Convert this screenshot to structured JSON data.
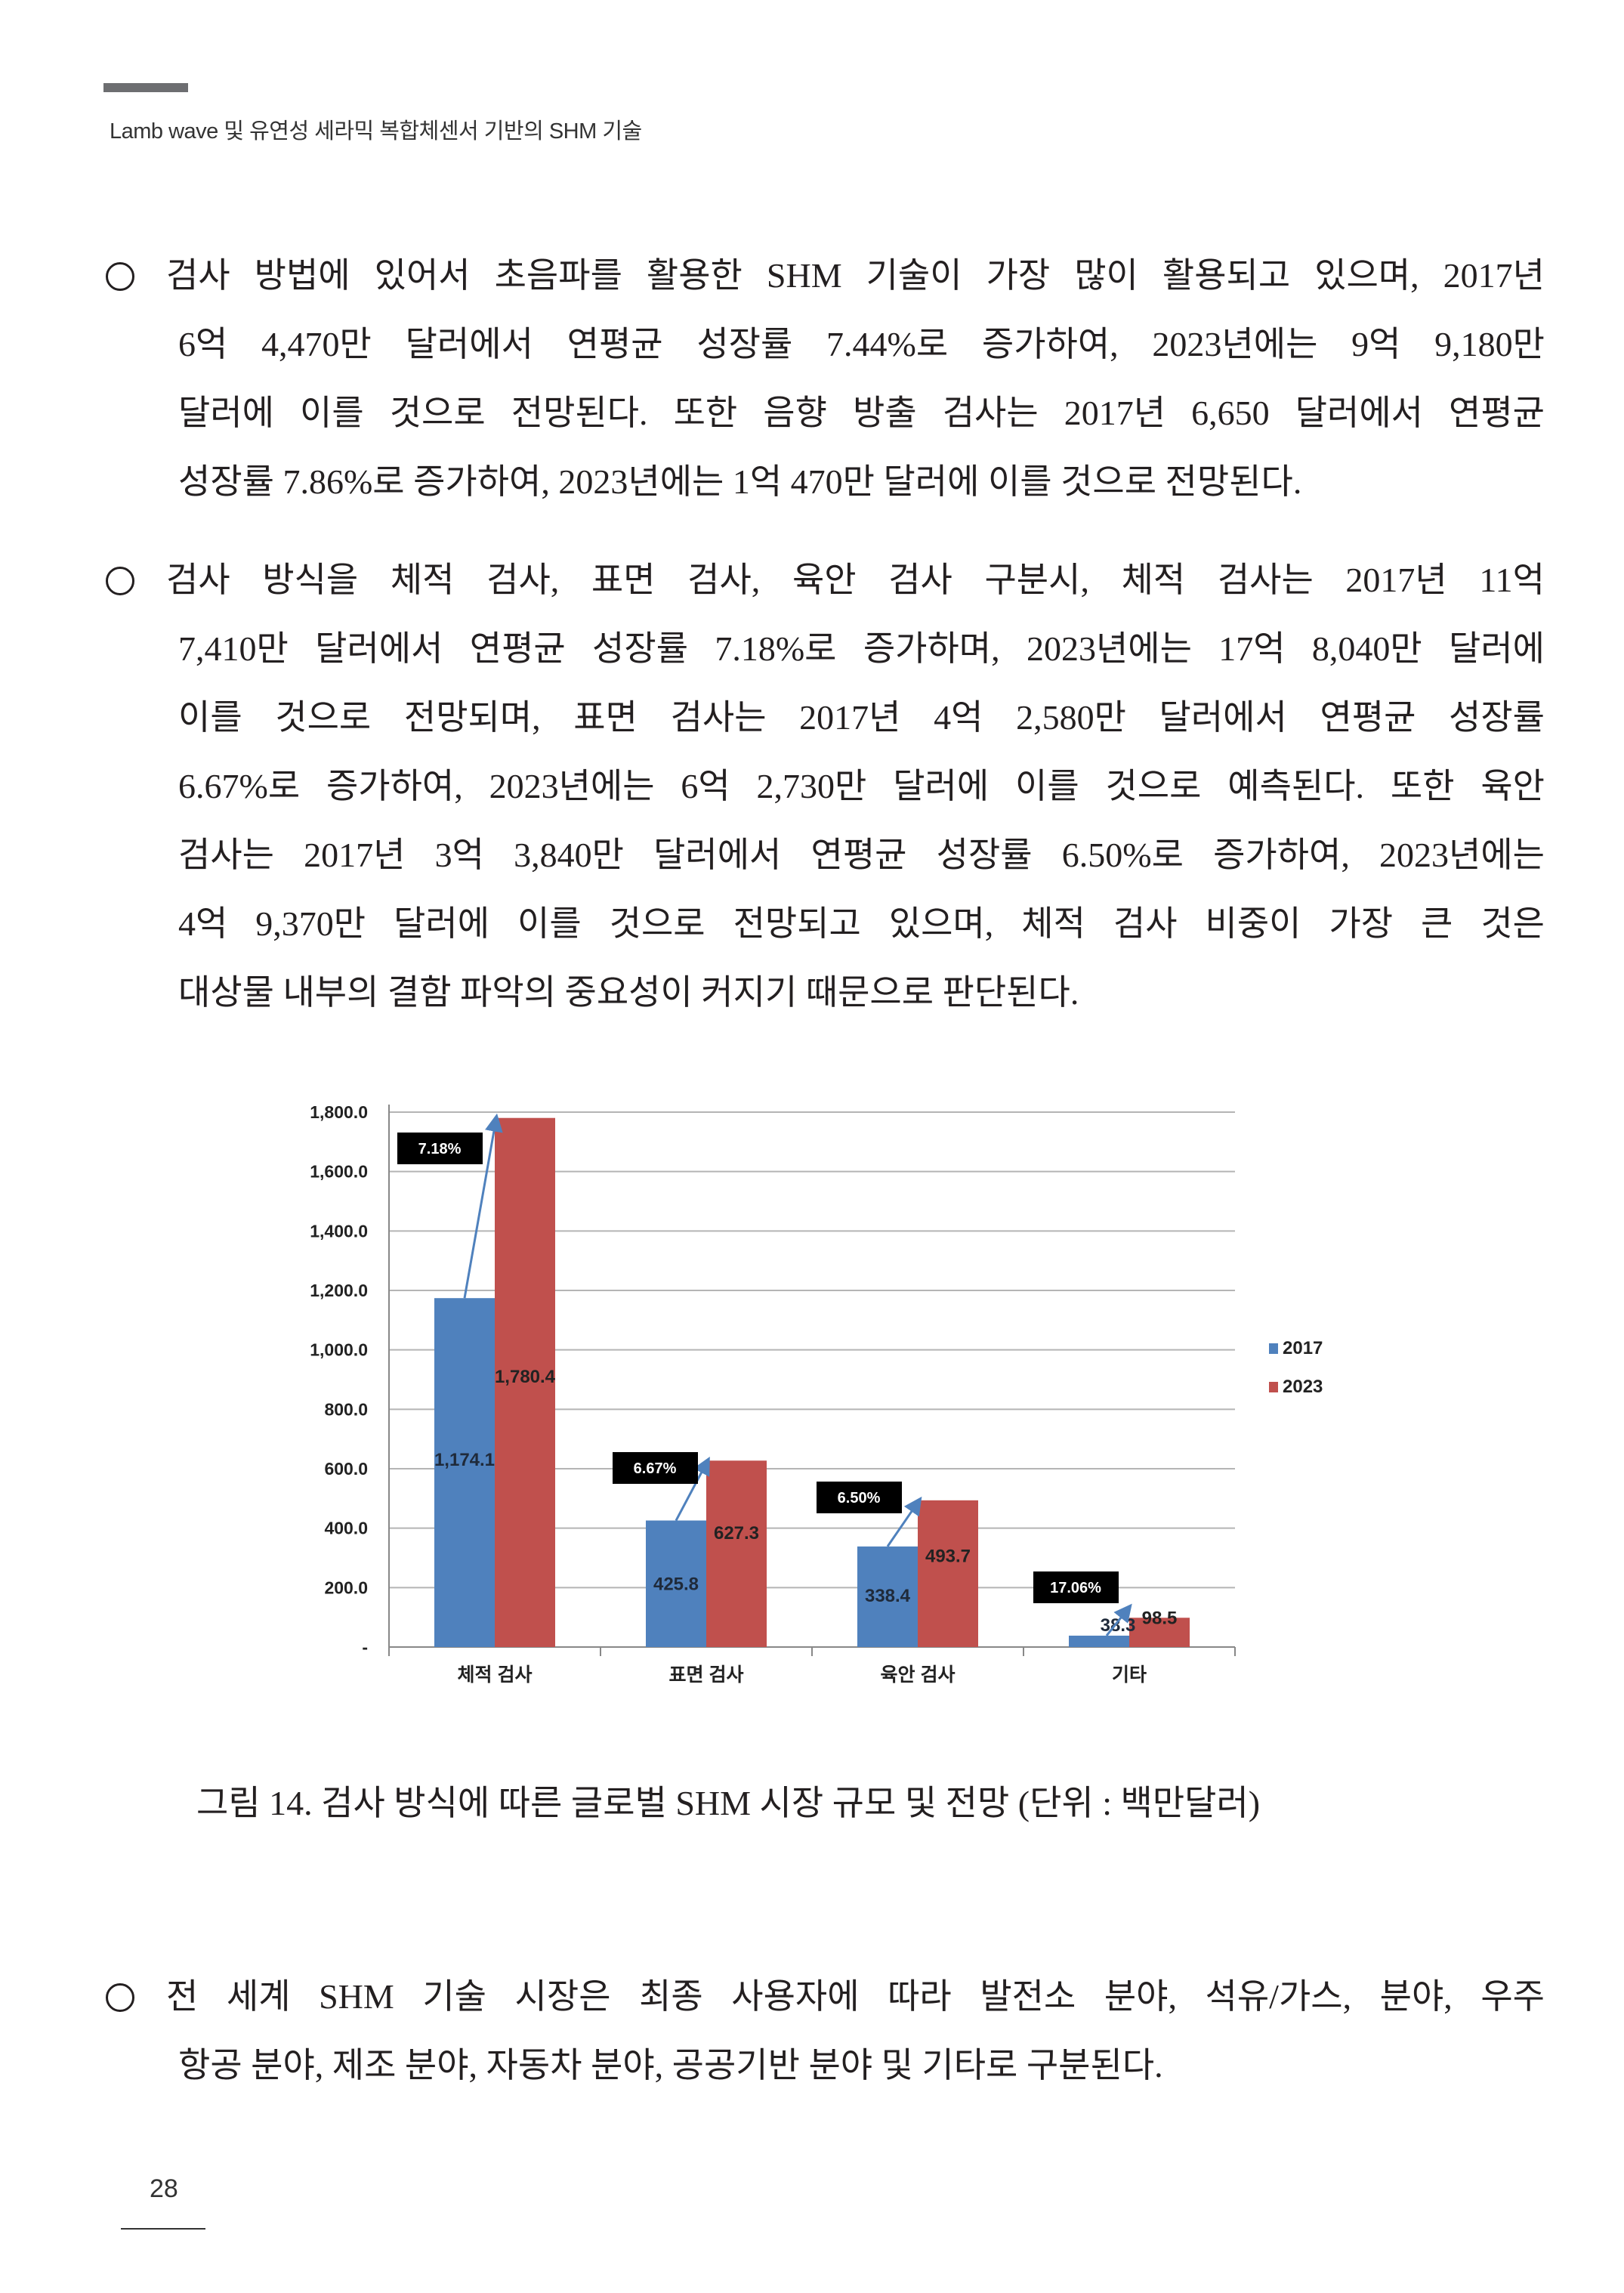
{
  "header": {
    "title": "Lamb wave 및 유연성 세라믹 복합체센서 기반의 SHM 기술"
  },
  "paragraphs": [
    {
      "lines": [
        "검사 방법에 있어서 초음파를 활용한 SHM 기술이 가장 많이 활용되고 있으며, 2017년",
        "6억 4,470만 달러에서 연평균 성장률 7.44%로 증가하여, 2023년에는 9억 9,180만",
        "달러에 이를 것으로 전망된다. 또한 음향 방출 검사는 2017년 6,650 달러에서 연평균",
        "성장률 7.86%로 증가하여, 2023년에는 1억 470만 달러에 이를 것으로 전망된다."
      ]
    },
    {
      "lines": [
        "검사 방식을 체적 검사, 표면 검사, 육안 검사 구분시, 체적 검사는 2017년 11억",
        "7,410만 달러에서 연평균 성장률 7.18%로 증가하며, 2023년에는 17억 8,040만 달러에",
        "이를 것으로 전망되며, 표면 검사는 2017년 4억 2,580만 달러에서 연평균 성장률",
        "6.67%로 증가하여, 2023년에는 6억 2,730만 달러에 이를 것으로 예측된다. 또한 육안",
        "검사는 2017년 3억 3,840만 달러에서 연평균 성장률 6.50%로 증가하여, 2023년에는",
        "4억 9,370만 달러에 이를 것으로 전망되고 있으며, 체적 검사 비중이 가장 큰 것은",
        "대상물 내부의 결함 파악의 중요성이 커지기 때문으로 판단된다."
      ]
    },
    {
      "lines": [
        "전 세계 SHM 기술 시장은 최종 사용자에 따라 발전소 분야, 석유/가스, 분야, 우주",
        "항공 분야, 제조 분야, 자동차 분야, 공공기반 분야 및 기타로 구분된다."
      ]
    }
  ],
  "chart_data": {
    "type": "bar",
    "categories": [
      "체적 검사",
      "표면 검사",
      "육안 검사",
      "기타"
    ],
    "series": [
      {
        "name": "2017",
        "values": [
          1174.1,
          425.8,
          338.4,
          38.3
        ],
        "labels": [
          "1,174.1",
          "425.8",
          "338.4",
          "38.3"
        ],
        "color": "#4f81bd"
      },
      {
        "name": "2023",
        "values": [
          1780.4,
          627.3,
          493.7,
          98.5
        ],
        "labels": [
          "1,780.4",
          "627.3",
          "493.7",
          "98.5"
        ],
        "color": "#c0504d"
      }
    ],
    "growth_annotations": [
      "7.18%",
      "6.67%",
      "6.50%",
      "17.06%"
    ],
    "yticks": [
      "-",
      "200.0",
      "400.0",
      "600.0",
      "800.0",
      "1,000.0",
      "1,200.0",
      "1,400.0",
      "1,600.0",
      "1,800.0"
    ],
    "ylim": [
      0,
      1800
    ],
    "grid": true,
    "legend": "right",
    "title": "",
    "xlabel": "",
    "ylabel": ""
  },
  "caption": "그림 14. 검사 방식에 따른 글로벌 SHM 시장 규모 및 전망 (단위 : 백만달러)",
  "footer": {
    "page_number": "28"
  }
}
